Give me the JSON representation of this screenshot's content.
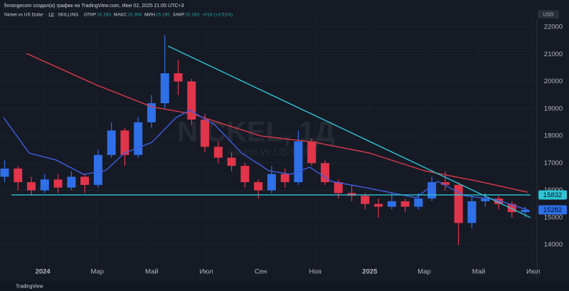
{
  "header": {
    "attribution": "finrangecom создал(а) график на TradingView.com, Июн 02, 2025 21:05 UTC+3",
    "symbol": "Nickel vs US Dollar · 1Д · SKILLING",
    "ohlc": [
      {
        "label": "ОТКР",
        "value": "15 293"
      },
      {
        "label": "МАКС",
        "value": "15 308"
      },
      {
        "label": "МИН",
        "value": "15 165"
      },
      {
        "label": "ЗАКР",
        "value": "15 283"
      }
    ],
    "change": "+518 (+3.51%)",
    "currency": "USD"
  },
  "watermark": {
    "symbol": "NICKEL, 1Д",
    "name": "Nickel vs US Dollar"
  },
  "footer": "TradingView",
  "chart_data": {
    "type": "candlestick",
    "xlim": [
      -1.57,
      18.14
    ],
    "ylim": [
      12930,
      22470
    ],
    "xticks": [
      {
        "value": 0,
        "label": "2024"
      },
      {
        "value": 2,
        "label": "Мар"
      },
      {
        "value": 4,
        "label": "Май"
      },
      {
        "value": 6,
        "label": "Июл"
      },
      {
        "value": 8,
        "label": "Сен"
      },
      {
        "value": 10,
        "label": "Ноя"
      },
      {
        "value": 12,
        "label": "2025"
      },
      {
        "value": 14,
        "label": "Мар"
      },
      {
        "value": 16,
        "label": "Май"
      },
      {
        "value": 18,
        "label": "Июл"
      }
    ],
    "yticks": [
      14000,
      15000,
      16000,
      17000,
      18000,
      19000,
      20000,
      21000,
      22000
    ],
    "grid": true,
    "up_color": "#2f6fe8",
    "down_color": "#e0354a",
    "x": [
      -1.4,
      -0.91,
      -0.42,
      0.07,
      0.56,
      1.05,
      1.54,
      2.03,
      2.52,
      3.01,
      3.5,
      3.99,
      4.48,
      4.97,
      5.46,
      5.95,
      6.44,
      6.93,
      7.42,
      7.91,
      8.4,
      8.89,
      9.38,
      9.87,
      10.36,
      10.85,
      11.34,
      11.83,
      12.32,
      12.81,
      13.3,
      13.79,
      14.28,
      14.77,
      15.26,
      15.75,
      16.24,
      16.73,
      17.22,
      17.71
    ],
    "open": [
      16500,
      16800,
      16300,
      16000,
      16400,
      16100,
      16500,
      16200,
      17300,
      18200,
      17300,
      18500,
      19200,
      20300,
      20000,
      18600,
      17600,
      17200,
      16900,
      16300,
      16000,
      16600,
      16300,
      17800,
      17000,
      16300,
      15900,
      15800,
      15500,
      15400,
      15600,
      15400,
      15700,
      16300,
      16200,
      14800,
      15600,
      15700,
      15500,
      15200
    ],
    "high": [
      17100,
      16900,
      16500,
      16600,
      16600,
      16700,
      16600,
      17500,
      18500,
      18300,
      18700,
      19500,
      21700,
      20800,
      20100,
      18800,
      17800,
      17400,
      17000,
      16400,
      16900,
      16800,
      18200,
      17900,
      17100,
      16400,
      16200,
      15900,
      15700,
      15900,
      15700,
      15900,
      16500,
      16700,
      16300,
      15800,
      15900,
      15800,
      15600,
      15400
    ],
    "low": [
      16300,
      16000,
      15800,
      15900,
      15900,
      16000,
      15900,
      16100,
      17200,
      16900,
      17200,
      18300,
      19000,
      19500,
      18400,
      17400,
      17000,
      16700,
      16100,
      15700,
      15900,
      16100,
      16200,
      16900,
      16200,
      15700,
      15600,
      15300,
      15000,
      15300,
      15200,
      15300,
      15600,
      16000,
      14000,
      14600,
      15400,
      15300,
      15000,
      15000
    ],
    "close": [
      16800,
      16300,
      16000,
      16400,
      16100,
      16500,
      16200,
      17300,
      18200,
      17300,
      18500,
      19200,
      20300,
      20000,
      18600,
      17600,
      17200,
      16900,
      16300,
      16000,
      16600,
      16300,
      17800,
      17000,
      16300,
      15900,
      15800,
      15500,
      15400,
      15600,
      15400,
      15700,
      16300,
      16200,
      14800,
      15600,
      15700,
      15500,
      15200,
      15283
    ],
    "series": [
      {
        "color": "#d93a4a",
        "x": [
          -0.6,
          2,
          4,
          5.5,
          8,
          10,
          12,
          14,
          16,
          17.8
        ],
        "values": [
          21030,
          19860,
          19070,
          18800,
          18000,
          17760,
          17370,
          16720,
          16330,
          15930
        ]
      },
      {
        "color": "#3d5fe0",
        "x": [
          -1.44,
          -0.5,
          0.5,
          1.5,
          2.3,
          3,
          4,
          4.9,
          5.4,
          6.3,
          7.3,
          8.3,
          9.1,
          9.8,
          10.6,
          12,
          13.7,
          14.5,
          15.5,
          16.6,
          17.8
        ],
        "values": [
          18680,
          17370,
          17110,
          16590,
          16720,
          17370,
          17760,
          18680,
          18940,
          18420,
          17370,
          16720,
          16590,
          16850,
          16330,
          16070,
          15730,
          16330,
          15800,
          15670,
          15280
        ]
      }
    ],
    "trendlines": [
      {
        "color": "#2ec4d6",
        "x": [
          4.6,
          17.9
        ],
        "values": [
          21300,
          15000
        ]
      },
      {
        "color": "#2ec4d6",
        "x": [
          -1.15,
          17.9
        ],
        "values": [
          15832,
          15832
        ]
      }
    ],
    "price_labels": [
      {
        "value": 15832,
        "color": "#2ec4d6"
      },
      {
        "value": 15282,
        "color": "#2f6fe8"
      }
    ]
  }
}
